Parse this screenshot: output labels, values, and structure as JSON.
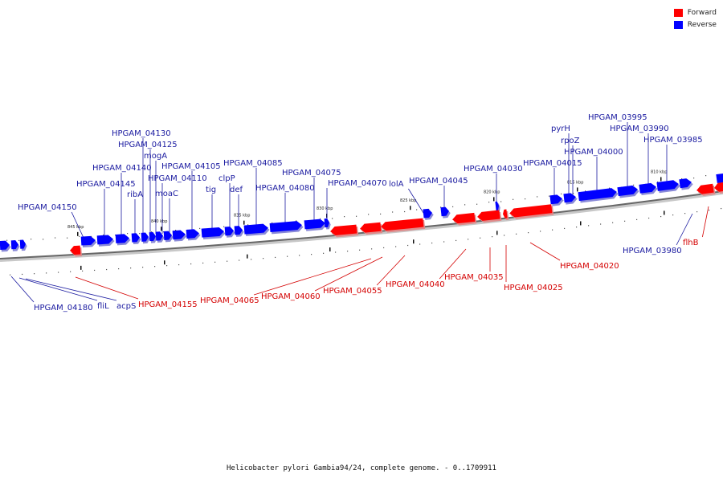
{
  "legend": {
    "forward_label": "Forward",
    "reverse_label": "Reverse",
    "forward_color": "#ff0000",
    "reverse_color": "#0000ff"
  },
  "caption": "Helicobacter pylori Gambia94/24, complete genome. - 0..1709911",
  "scale_labels": [
    "845 kbp",
    "840 kbp",
    "835 kbp",
    "830 kbp",
    "825 kbp",
    "820 kbp",
    "815 kbp",
    "810 kbp"
  ],
  "genes": {
    "reverse": [
      "HPGAM_04180",
      "fliL",
      "acpS",
      "HPGAM_04150",
      "HPGAM_04145",
      "HPGAM_04140",
      "ribA",
      "HPGAM_04130",
      "HPGAM_04125",
      "mogA",
      "HPGAM_04110",
      "moaC",
      "HPGAM_04105",
      "tig",
      "clpP",
      "def",
      "HPGAM_04085",
      "HPGAM_04080",
      "HPGAM_04075",
      "HPGAM_04070",
      "lolA",
      "HPGAM_04045",
      "HPGAM_04030",
      "HPGAM_04015",
      "pyrH",
      "rpoZ",
      "HPGAM_04000",
      "HPGAM_03995",
      "HPGAM_03990",
      "HPGAM_03985",
      "HPGAM_03980"
    ],
    "forward": [
      "HPGAM_04155",
      "HPGAM_04065",
      "HPGAM_04060",
      "HPGAM_04055",
      "HPGAM_04040",
      "HPGAM_04035",
      "HPGAM_04025",
      "HPGAM_04020",
      "flhB"
    ]
  }
}
